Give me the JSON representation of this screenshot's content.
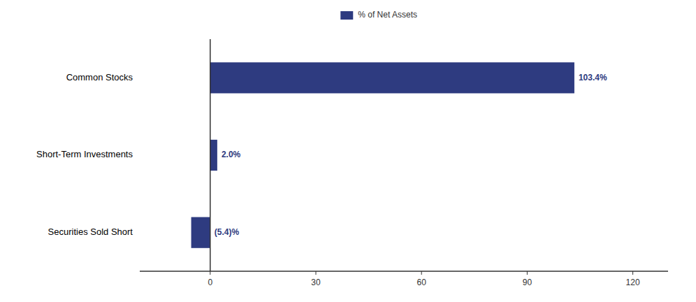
{
  "chart_data": {
    "type": "bar",
    "orientation": "horizontal",
    "categories": [
      "Common Stocks",
      "Short-Term Investments",
      "Securities Sold Short"
    ],
    "series": [
      {
        "name": "% of Net Assets",
        "color": "#2e3b80",
        "values": [
          103.4,
          2.0,
          -5.4
        ],
        "value_labels": [
          "103.4%",
          "2.0%",
          "(5.4)%"
        ]
      }
    ],
    "xlim": [
      -20,
      130
    ],
    "xticks": [
      0,
      30,
      60,
      90,
      120
    ],
    "data_labels": true,
    "legend": "top",
    "grid": false
  }
}
